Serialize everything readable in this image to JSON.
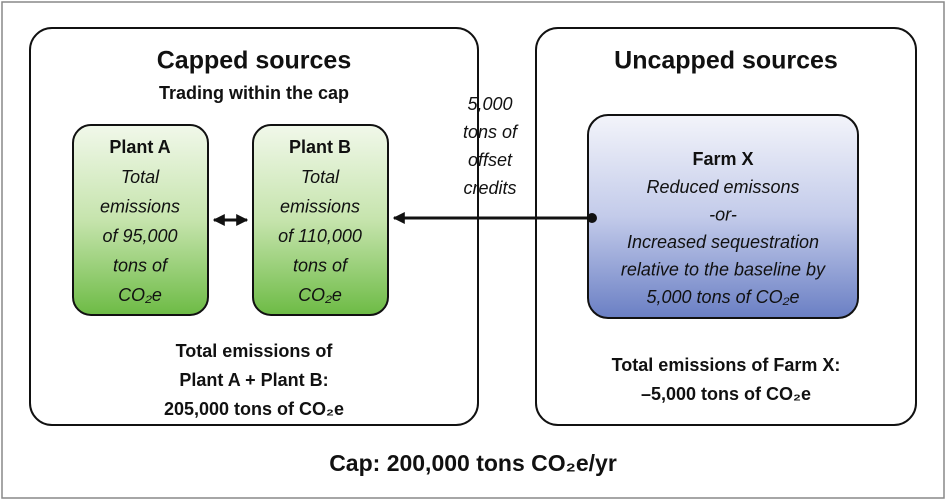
{
  "left": {
    "title": "Capped sources",
    "subtitle": "Trading within the cap",
    "plants": [
      {
        "name": "Plant A",
        "lines": [
          "Total",
          "emissions",
          "of 95,000",
          "tons of",
          "CO₂e"
        ]
      },
      {
        "name": "Plant B",
        "lines": [
          "Total",
          "emissions",
          "of 110,000",
          "tons of",
          "CO₂e"
        ]
      }
    ],
    "total": [
      "Total emissions of",
      "Plant A + Plant B:",
      "205,000 tons of CO₂e"
    ]
  },
  "offset": {
    "lines": [
      "5,000",
      "tons of",
      "offset",
      "credits"
    ]
  },
  "right": {
    "title": "Uncapped sources",
    "farm": {
      "name": "Farm X",
      "lines": [
        "Reduced emissons",
        "-or-",
        "Increased sequestration",
        "relative to the baseline by",
        "5,000 tons of CO₂e"
      ]
    },
    "total": [
      "Total emissions of Farm X:",
      "–5,000 tons of CO₂e"
    ]
  },
  "cap": "Cap: 200,000 tons CO₂e/yr"
}
